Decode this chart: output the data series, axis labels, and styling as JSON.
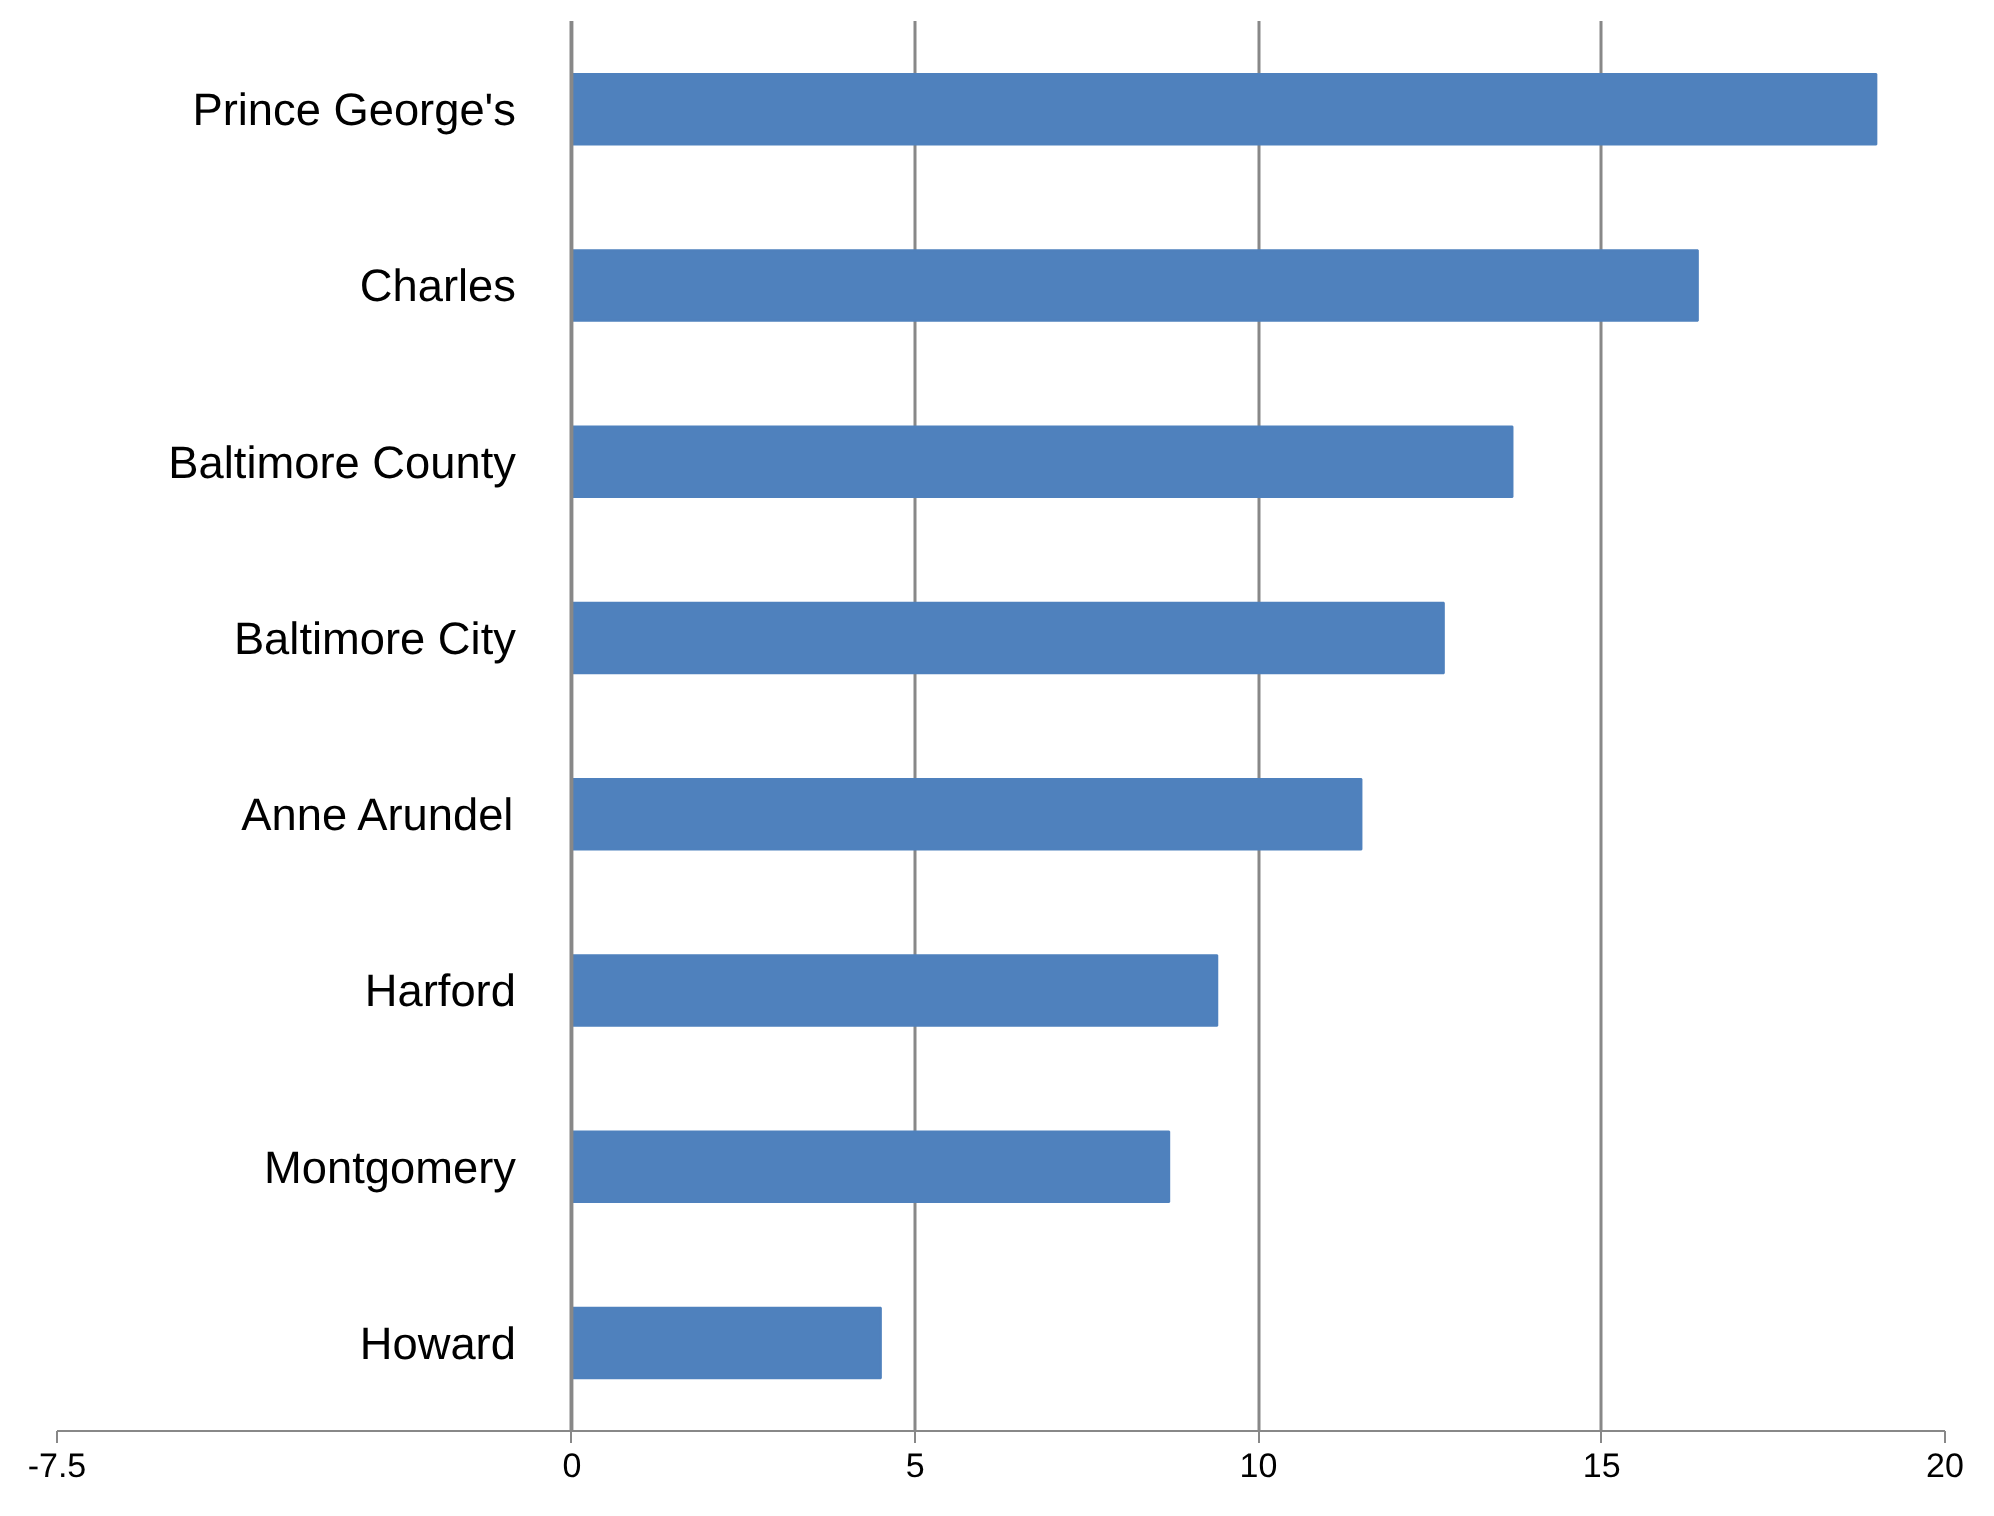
{
  "chart_data": {
    "type": "bar",
    "orientation": "horizontal",
    "categories": [
      "Prince George's",
      "Charles",
      "Baltimore County",
      "Baltimore City",
      "Anne Arundel",
      "Harford",
      "Montgomery",
      "Howard"
    ],
    "values": [
      19.0,
      16.4,
      13.7,
      12.7,
      11.5,
      9.4,
      8.7,
      4.5
    ],
    "color": "#4f81bd",
    "xlim": [
      -7.5,
      20
    ],
    "xticks": [
      {
        "value": -7.5,
        "label": "-7.5"
      },
      0,
      5,
      10,
      15,
      20
    ],
    "grid": "x"
  }
}
